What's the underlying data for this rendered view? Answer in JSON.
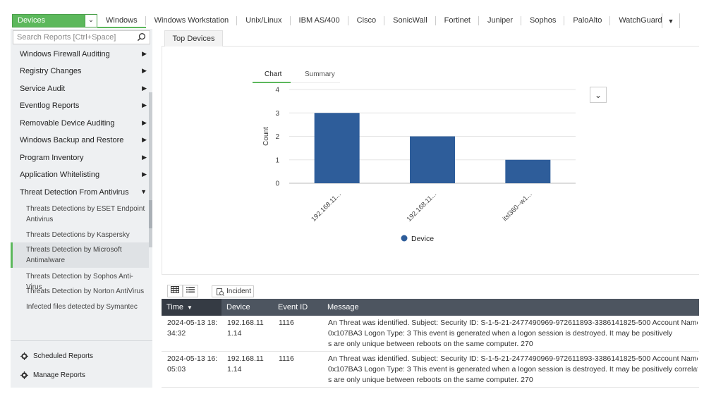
{
  "topbar": {
    "device_select": "Devices",
    "tabs": [
      "Windows",
      "Windows Workstation",
      "Unix/Linux",
      "IBM AS/400",
      "Cisco",
      "SonicWall",
      "Fortinet",
      "Juniper",
      "Sophos",
      "PaloAlto",
      "WatchGuard"
    ],
    "active_tab": "Windows"
  },
  "sidebar": {
    "search_placeholder": "Search Reports [Ctrl+Space]",
    "menu": [
      "Windows Firewall Auditing",
      "Registry Changes",
      "Service Audit",
      "Eventlog Reports",
      "Removable Device Auditing",
      "Windows Backup and Restore",
      "Program Inventory",
      "Application Whitelisting",
      "Threat Detection From Antivirus"
    ],
    "submenu": [
      [
        "Threats Detections by ESET Endpoint",
        "Antivirus"
      ],
      [
        "Threats Detections by Kaspersky"
      ],
      [
        "Threats Detection by Microsoft",
        "Antimalware"
      ],
      [
        "Threats Detection by Sophos Anti-Virus"
      ],
      [
        "Threats Detection by Norton AntiVirus"
      ],
      [
        "Infected files detected by Symantec"
      ]
    ],
    "scheduled_reports": "Scheduled Reports",
    "manage_reports": "Manage Reports"
  },
  "main": {
    "tab": "Top Devices",
    "subtabs": {
      "chart": "Chart",
      "summary": "Summary"
    }
  },
  "chart_data": {
    "type": "bar",
    "categories": [
      "192.168.11...",
      "192.168.11...",
      "itsl360--w1..."
    ],
    "values": [
      3,
      2,
      1
    ],
    "ylabel": "Count",
    "ylim": [
      0,
      4
    ],
    "yticks": [
      0,
      1,
      2,
      3,
      4
    ],
    "legend": "Device",
    "legend_position": "bottom",
    "color": "#2e5d9a",
    "grid": true
  },
  "table": {
    "incident_label": "Incident",
    "columns": {
      "time": "Time",
      "device": "Device",
      "event": "Event ID",
      "message": "Message"
    },
    "rows": [
      {
        "time": [
          "2024-05-13 18:",
          "34:32"
        ],
        "device": [
          "192.168.11",
          "1.14"
        ],
        "event": "1116",
        "message": [
          "An Threat was identified. Subject: Security ID: S-1-5-21-2477490969-972611893-3386141825-500 Account Name:",
          "0x107BA3 Logon Type: 3 This event is generated when a logon session is destroyed. It may be positively",
          "s are only unique between reboots on the same computer. 270"
        ]
      },
      {
        "time": [
          "2024-05-13 16:",
          "05:03"
        ],
        "device": [
          "192.168.11",
          "1.14"
        ],
        "event": "1116",
        "message": [
          "An Threat was identified. Subject: Security ID: S-1-5-21-2477490969-972611893-3386141825-500 Account Name:",
          "0x107BA3 Logon Type: 3 This event is generated when a logon session is destroyed. It may be positively correlated",
          "s are only unique between reboots on the same computer. 270"
        ]
      }
    ]
  }
}
